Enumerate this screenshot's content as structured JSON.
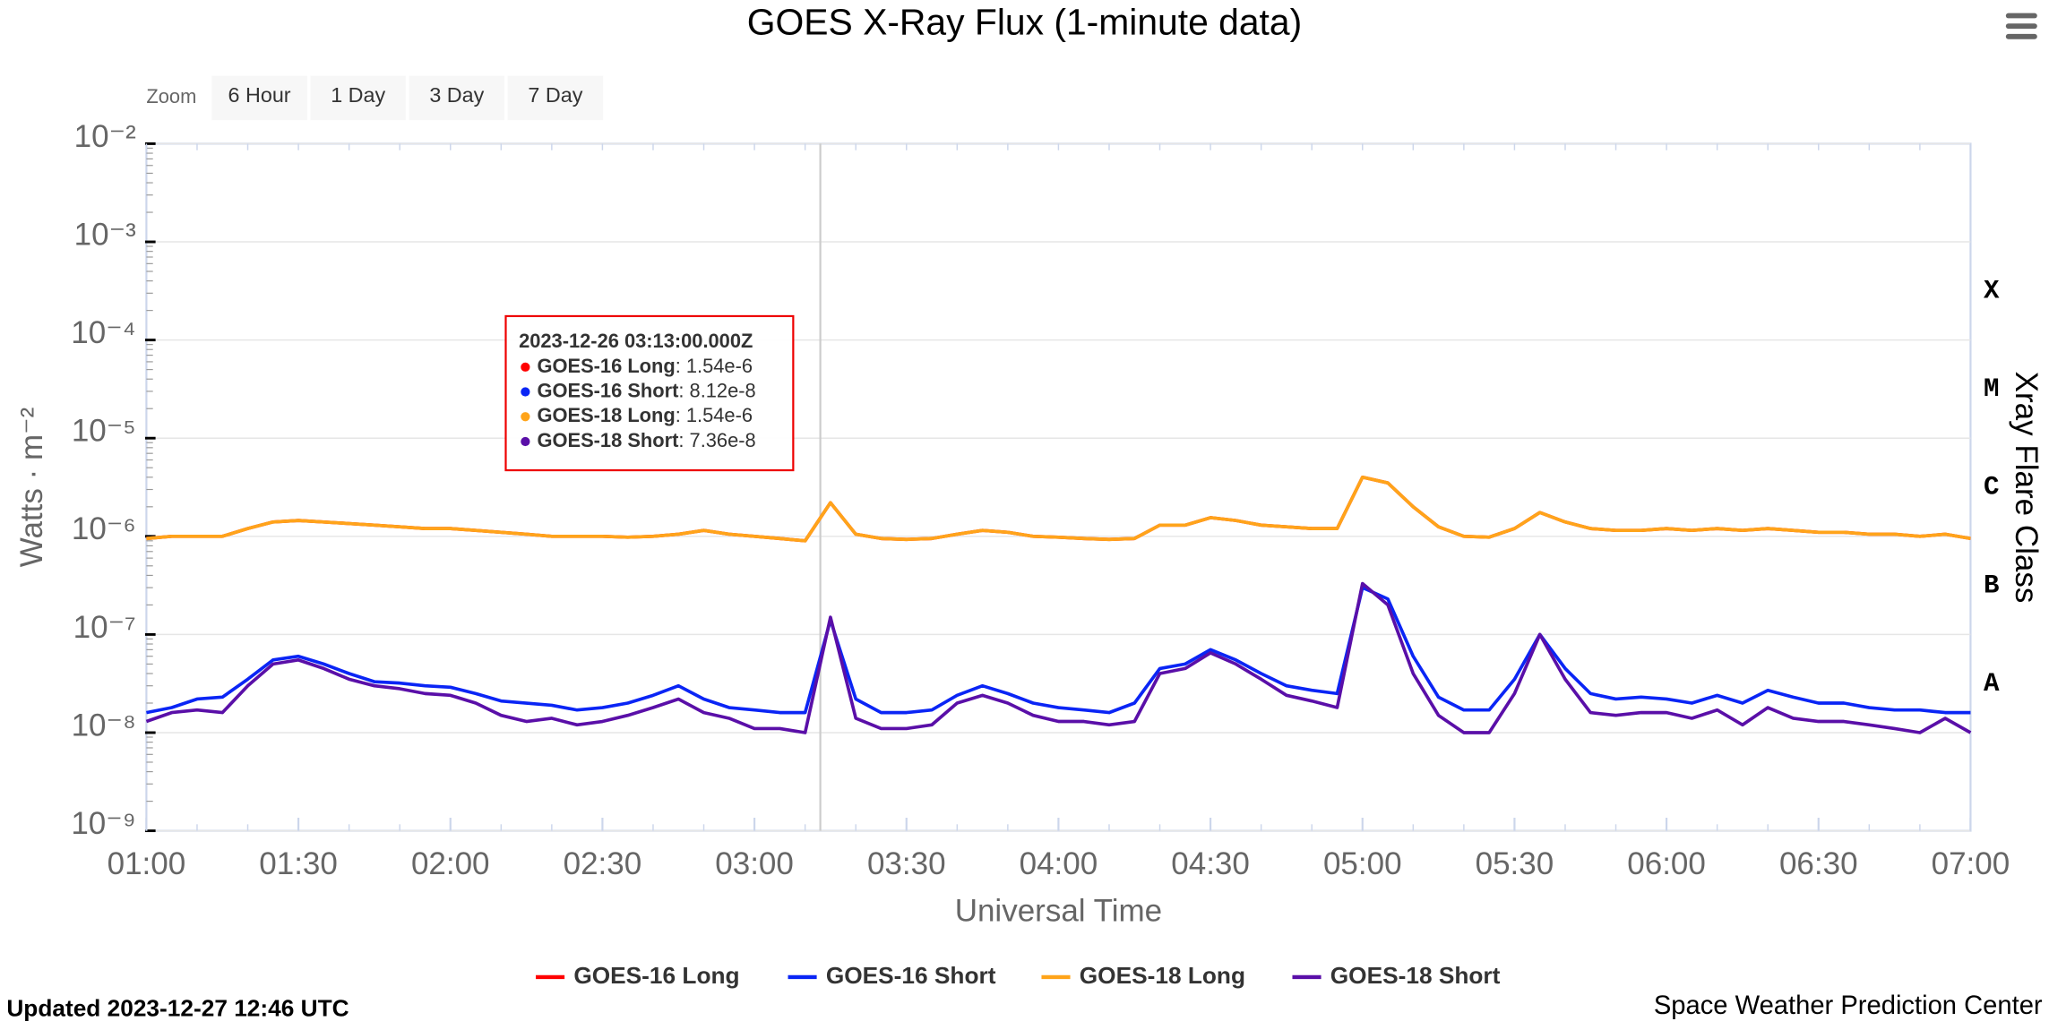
{
  "chart_data": {
    "type": "line",
    "title": "GOES X-Ray Flux (1-minute data)",
    "zoom_label": "Zoom",
    "zoom_buttons": [
      "6 Hour",
      "1 Day",
      "3 Day",
      "7 Day"
    ],
    "x_label": "Universal Time",
    "y_label": "Watts · m⁻²",
    "y2_label": "Xray Flare Class",
    "log_scale": true,
    "grid": true,
    "legend": "bottom",
    "x": [
      "01:00",
      "01:05",
      "01:10",
      "01:15",
      "01:20",
      "01:25",
      "01:30",
      "01:35",
      "01:40",
      "01:45",
      "01:50",
      "01:55",
      "02:00",
      "02:05",
      "02:10",
      "02:15",
      "02:20",
      "02:25",
      "02:30",
      "02:35",
      "02:40",
      "02:45",
      "02:50",
      "02:55",
      "03:00",
      "03:05",
      "03:10",
      "03:15",
      "03:20",
      "03:25",
      "03:30",
      "03:35",
      "03:40",
      "03:45",
      "03:50",
      "03:55",
      "04:00",
      "04:05",
      "04:10",
      "04:15",
      "04:20",
      "04:25",
      "04:30",
      "04:35",
      "04:40",
      "04:45",
      "04:50",
      "04:55",
      "05:00",
      "05:05",
      "05:10",
      "05:15",
      "05:20",
      "05:25",
      "05:30",
      "05:35",
      "05:40",
      "05:45",
      "05:50",
      "05:55",
      "06:00",
      "06:05",
      "06:10",
      "06:15",
      "06:20",
      "06:25",
      "06:30",
      "06:35",
      "06:40",
      "06:45",
      "06:50",
      "06:55",
      "07:00"
    ],
    "xlim": [
      "01:00",
      "07:00"
    ],
    "xticks": [
      "01:00",
      "01:30",
      "02:00",
      "02:30",
      "03:00",
      "03:30",
      "04:00",
      "04:30",
      "05:00",
      "05:30",
      "06:00",
      "06:30",
      "07:00"
    ],
    "ylim": [
      1e-09,
      0.01
    ],
    "yticks": [
      {
        "value": 1e-09,
        "label": "10⁻⁹"
      },
      {
        "value": 1e-08,
        "label": "10⁻⁸"
      },
      {
        "value": 1e-07,
        "label": "10⁻⁷"
      },
      {
        "value": 1e-06,
        "label": "10⁻⁶"
      },
      {
        "value": 1e-05,
        "label": "10⁻⁵"
      },
      {
        "value": 0.0001,
        "label": "10⁻⁴"
      },
      {
        "value": 0.001,
        "label": "10⁻³"
      },
      {
        "value": 0.01,
        "label": "10⁻²"
      }
    ],
    "y2lim": [
      1e-09,
      0.01
    ],
    "y2ticks": [
      {
        "value": 1e-08,
        "label": "A"
      },
      {
        "value": 1e-07,
        "label": "B"
      },
      {
        "value": 1e-06,
        "label": "C"
      },
      {
        "value": 1e-05,
        "label": "M"
      },
      {
        "value": 0.0001,
        "label": "X"
      }
    ],
    "series": [
      {
        "name": "GOES-16 Long",
        "color": "#ff0000",
        "values": [
          9.5e-07,
          1e-06,
          1e-06,
          1e-06,
          1.2e-06,
          1.4e-06,
          1.45e-06,
          1.4e-06,
          1.35e-06,
          1.3e-06,
          1.25e-06,
          1.2e-06,
          1.2e-06,
          1.15e-06,
          1.1e-06,
          1.05e-06,
          1e-06,
          1e-06,
          1e-06,
          9.8e-07,
          1e-06,
          1.05e-06,
          1.15e-06,
          1.05e-06,
          1e-06,
          9.5e-07,
          9e-07,
          2.2e-06,
          1.05e-06,
          9.5e-07,
          9.3e-07,
          9.5e-07,
          1.05e-06,
          1.15e-06,
          1.1e-06,
          1e-06,
          9.8e-07,
          9.5e-07,
          9.3e-07,
          9.5e-07,
          1.3e-06,
          1.3e-06,
          1.55e-06,
          1.45e-06,
          1.3e-06,
          1.25e-06,
          1.2e-06,
          1.2e-06,
          4e-06,
          3.5e-06,
          2e-06,
          1.25e-06,
          1e-06,
          9.8e-07,
          1.2e-06,
          1.75e-06,
          1.4e-06,
          1.2e-06,
          1.15e-06,
          1.15e-06,
          1.2e-06,
          1.15e-06,
          1.2e-06,
          1.15e-06,
          1.2e-06,
          1.15e-06,
          1.1e-06,
          1.1e-06,
          1.05e-06,
          1.05e-06,
          1e-06,
          1.05e-06,
          9.5e-07
        ]
      },
      {
        "name": "GOES-16 Short",
        "color": "#0a25f5",
        "values": [
          1.6e-08,
          1.8e-08,
          2.2e-08,
          2.3e-08,
          3.5e-08,
          5.5e-08,
          6e-08,
          5e-08,
          4e-08,
          3.3e-08,
          3.2e-08,
          3e-08,
          2.9e-08,
          2.5e-08,
          2.1e-08,
          2e-08,
          1.9e-08,
          1.7e-08,
          1.8e-08,
          2e-08,
          2.4e-08,
          3e-08,
          2.2e-08,
          1.8e-08,
          1.7e-08,
          1.6e-08,
          1.6e-08,
          1.4e-07,
          2.2e-08,
          1.6e-08,
          1.6e-08,
          1.7e-08,
          2.4e-08,
          3e-08,
          2.5e-08,
          2e-08,
          1.8e-08,
          1.7e-08,
          1.6e-08,
          2e-08,
          4.5e-08,
          5e-08,
          7e-08,
          5.5e-08,
          4e-08,
          3e-08,
          2.7e-08,
          2.5e-08,
          3e-07,
          2.3e-07,
          6e-08,
          2.3e-08,
          1.7e-08,
          1.7e-08,
          3.5e-08,
          1e-07,
          4.5e-08,
          2.5e-08,
          2.2e-08,
          2.3e-08,
          2.2e-08,
          2e-08,
          2.4e-08,
          2e-08,
          2.7e-08,
          2.3e-08,
          2e-08,
          2e-08,
          1.8e-08,
          1.7e-08,
          1.7e-08,
          1.6e-08,
          1.6e-08
        ]
      },
      {
        "name": "GOES-18 Long",
        "color": "#ffa41a",
        "values": [
          9.5e-07,
          1e-06,
          1e-06,
          1e-06,
          1.2e-06,
          1.4e-06,
          1.45e-06,
          1.4e-06,
          1.35e-06,
          1.3e-06,
          1.25e-06,
          1.2e-06,
          1.2e-06,
          1.15e-06,
          1.1e-06,
          1.05e-06,
          1e-06,
          1e-06,
          1e-06,
          9.8e-07,
          1e-06,
          1.05e-06,
          1.15e-06,
          1.05e-06,
          1e-06,
          9.5e-07,
          9e-07,
          2.2e-06,
          1.05e-06,
          9.5e-07,
          9.3e-07,
          9.5e-07,
          1.05e-06,
          1.15e-06,
          1.1e-06,
          1e-06,
          9.8e-07,
          9.5e-07,
          9.3e-07,
          9.5e-07,
          1.3e-06,
          1.3e-06,
          1.55e-06,
          1.45e-06,
          1.3e-06,
          1.25e-06,
          1.2e-06,
          1.2e-06,
          4e-06,
          3.5e-06,
          2e-06,
          1.25e-06,
          1e-06,
          9.8e-07,
          1.2e-06,
          1.75e-06,
          1.4e-06,
          1.2e-06,
          1.15e-06,
          1.15e-06,
          1.2e-06,
          1.15e-06,
          1.2e-06,
          1.15e-06,
          1.2e-06,
          1.15e-06,
          1.1e-06,
          1.1e-06,
          1.05e-06,
          1.05e-06,
          1e-06,
          1.05e-06,
          9.5e-07
        ]
      },
      {
        "name": "GOES-18 Short",
        "color": "#5a0fa8",
        "values": [
          1.3e-08,
          1.6e-08,
          1.7e-08,
          1.6e-08,
          3e-08,
          5e-08,
          5.5e-08,
          4.5e-08,
          3.5e-08,
          3e-08,
          2.8e-08,
          2.5e-08,
          2.4e-08,
          2e-08,
          1.5e-08,
          1.3e-08,
          1.4e-08,
          1.2e-08,
          1.3e-08,
          1.5e-08,
          1.8e-08,
          2.2e-08,
          1.6e-08,
          1.4e-08,
          1.1e-08,
          1.1e-08,
          1e-08,
          1.5e-07,
          1.4e-08,
          1.1e-08,
          1.1e-08,
          1.2e-08,
          2e-08,
          2.4e-08,
          2e-08,
          1.5e-08,
          1.3e-08,
          1.3e-08,
          1.2e-08,
          1.3e-08,
          4e-08,
          4.5e-08,
          6.5e-08,
          5e-08,
          3.5e-08,
          2.4e-08,
          2.1e-08,
          1.8e-08,
          3.3e-07,
          2e-07,
          4e-08,
          1.5e-08,
          1e-08,
          1e-08,
          2.5e-08,
          1e-07,
          3.5e-08,
          1.6e-08,
          1.5e-08,
          1.6e-08,
          1.6e-08,
          1.4e-08,
          1.7e-08,
          1.2e-08,
          1.8e-08,
          1.4e-08,
          1.3e-08,
          1.3e-08,
          1.2e-08,
          1.1e-08,
          1e-08,
          1.4e-08,
          1e-08
        ]
      }
    ],
    "tooltip": {
      "time": "2023-12-26 03:13:00.000Z",
      "values": [
        1.54e-06,
        8.12e-08,
        1.54e-06,
        7.36e-08
      ],
      "value_labels": [
        "1.54e-6",
        "8.12e-8",
        "1.54e-6",
        "7.36e-8"
      ]
    },
    "updated": "Updated 2023-12-27 12:46 UTC",
    "credit": "Space Weather Prediction Center"
  }
}
